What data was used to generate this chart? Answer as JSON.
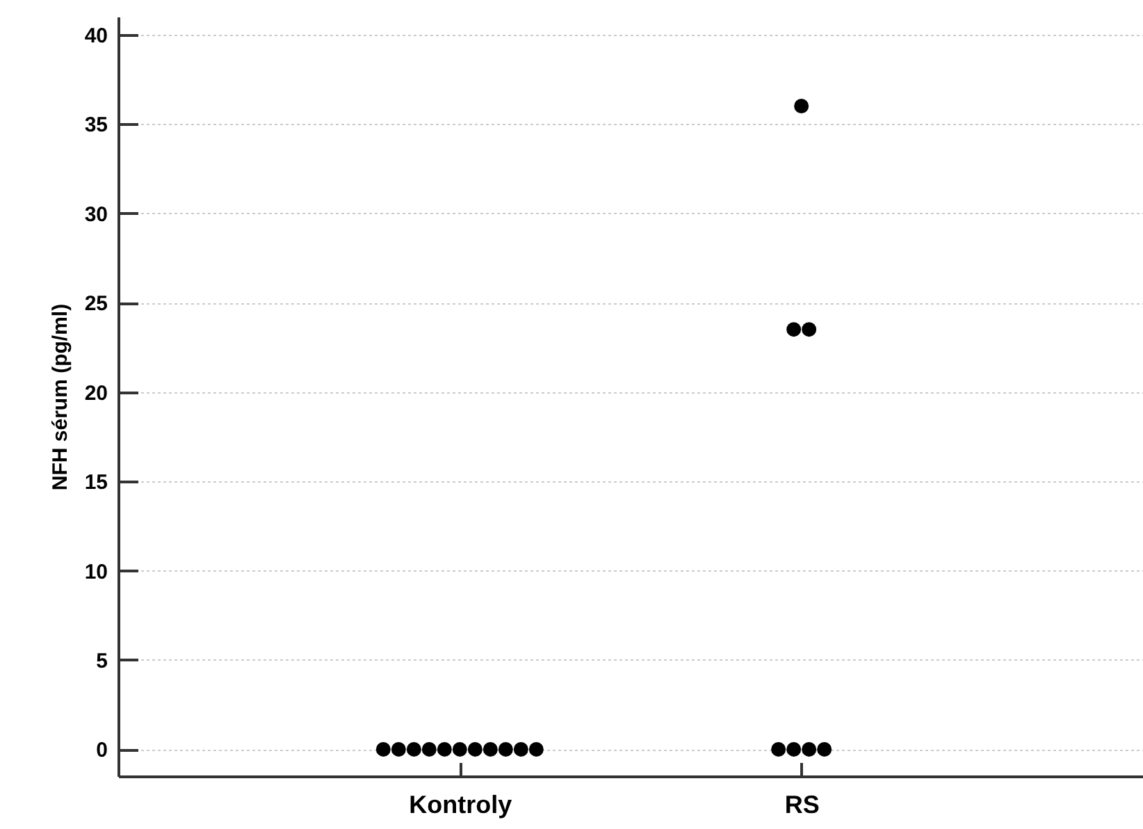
{
  "chart_data": {
    "type": "scatter",
    "ylabel": "NFH  sérum (pg/ml)",
    "categories": [
      "Kontroly",
      "RS"
    ],
    "series": [
      {
        "color": "#000000",
        "x": [
          "Kontroly",
          "Kontroly",
          "Kontroly",
          "Kontroly",
          "Kontroly",
          "Kontroly",
          "Kontroly",
          "Kontroly",
          "Kontroly",
          "Kontroly",
          "Kontroly",
          "RS",
          "RS",
          "RS",
          "RS",
          "RS",
          "RS",
          "RS"
        ],
        "values": [
          0,
          0,
          0,
          0,
          0,
          0,
          0,
          0,
          0,
          0,
          0,
          36,
          23.5,
          23.5,
          0,
          0,
          0,
          0
        ]
      }
    ],
    "ylim": [
      -1.5,
      41
    ],
    "yticks": [
      0,
      5,
      10,
      15,
      20,
      25,
      30,
      35,
      40
    ],
    "grid": "y",
    "marker": "circle"
  }
}
